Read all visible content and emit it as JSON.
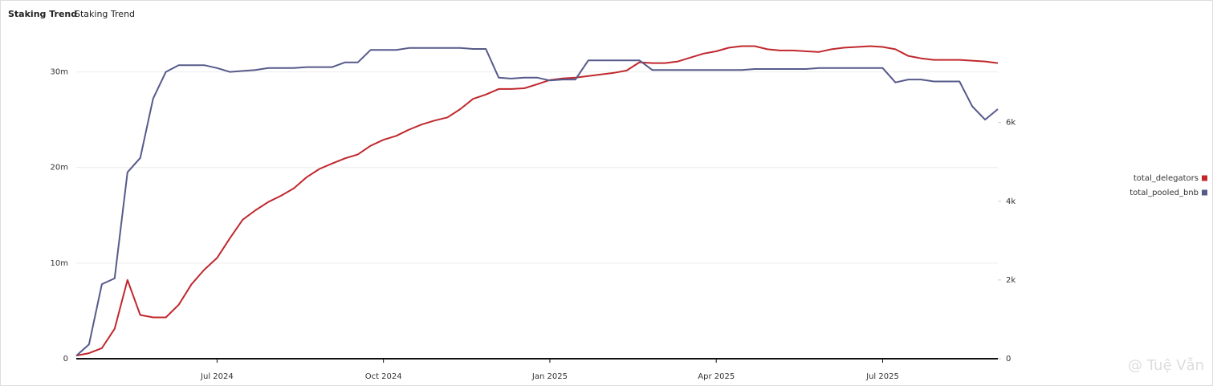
{
  "chart_data": {
    "type": "line",
    "title": "Staking Trend",
    "subtitle": "Staking Trend",
    "categories": [
      null,
      null,
      null,
      null,
      null,
      null,
      null,
      null,
      null,
      null,
      null,
      "Jul 2024",
      null,
      null,
      null,
      null,
      null,
      null,
      null,
      null,
      null,
      null,
      null,
      null,
      "Oct 2024",
      null,
      null,
      null,
      null,
      null,
      null,
      null,
      null,
      null,
      null,
      null,
      null,
      "Jan 2025",
      null,
      null,
      null,
      null,
      null,
      null,
      null,
      null,
      null,
      null,
      null,
      null,
      "Apr 2025",
      null,
      null,
      null,
      null,
      null,
      null,
      null,
      null,
      null,
      null,
      null,
      null,
      "Jul 2025",
      null,
      null,
      null,
      null,
      null,
      null,
      null,
      null,
      null
    ],
    "series": [
      {
        "name": "total_delegators",
        "color": "#c0282d",
        "axis": "y2",
        "values": [
          80,
          140,
          270,
          760,
          2000,
          1110,
          1050,
          1050,
          1370,
          1890,
          2260,
          2560,
          3060,
          3530,
          3770,
          3980,
          4140,
          4330,
          4610,
          4820,
          4960,
          5090,
          5190,
          5410,
          5560,
          5660,
          5820,
          5950,
          6050,
          6130,
          6340,
          6600,
          6710,
          6850,
          6850,
          6870,
          6970,
          7080,
          7120,
          7140,
          7180,
          7220,
          7260,
          7320,
          7530,
          7510,
          7510,
          7550,
          7650,
          7750,
          7810,
          7900,
          7940,
          7940,
          7860,
          7830,
          7830,
          7810,
          7790,
          7860,
          7900,
          7920,
          7940,
          7920,
          7860,
          7690,
          7630,
          7590,
          7590,
          7590,
          7570,
          7550,
          7510
        ]
      },
      {
        "name": "total_pooled_bnb",
        "color": "#565a8a",
        "values": [
          0.3,
          1.5,
          7.8,
          8.4,
          19.5,
          21.0,
          27.2,
          30.0,
          30.7,
          30.7,
          30.7,
          30.4,
          30.0,
          30.1,
          30.2,
          30.4,
          30.4,
          30.4,
          30.5,
          30.5,
          30.5,
          31.0,
          31.0,
          32.3,
          32.3,
          32.3,
          32.5,
          32.5,
          32.5,
          32.5,
          32.5,
          32.4,
          32.4,
          29.4,
          29.3,
          29.4,
          29.4,
          29.1,
          29.2,
          29.2,
          31.2,
          31.2,
          31.2,
          31.2,
          31.2,
          30.2,
          30.2,
          30.2,
          30.2,
          30.2,
          30.2,
          30.2,
          30.2,
          30.3,
          30.3,
          30.3,
          30.3,
          30.3,
          30.4,
          30.4,
          30.4,
          30.4,
          30.4,
          30.4,
          28.9,
          29.2,
          29.2,
          29.0,
          29.0,
          29.0,
          26.4,
          25.0,
          26.1
        ]
      }
    ],
    "ylim": [
      0,
      35
    ],
    "yticks": [
      0,
      {
        "value": 10,
        "label": "10m"
      },
      {
        "value": 20,
        "label": "20m"
      },
      {
        "value": 30,
        "label": "30m"
      }
    ],
    "y2lim": [
      0,
      8500
    ],
    "y2ticks": [
      0,
      {
        "value": 2000,
        "label": "2k"
      },
      {
        "value": 4000,
        "label": "4k"
      },
      {
        "value": 6000,
        "label": "6k"
      }
    ],
    "grid": true,
    "legend": "right",
    "watermark": "@ Tuệ Vẫn"
  }
}
